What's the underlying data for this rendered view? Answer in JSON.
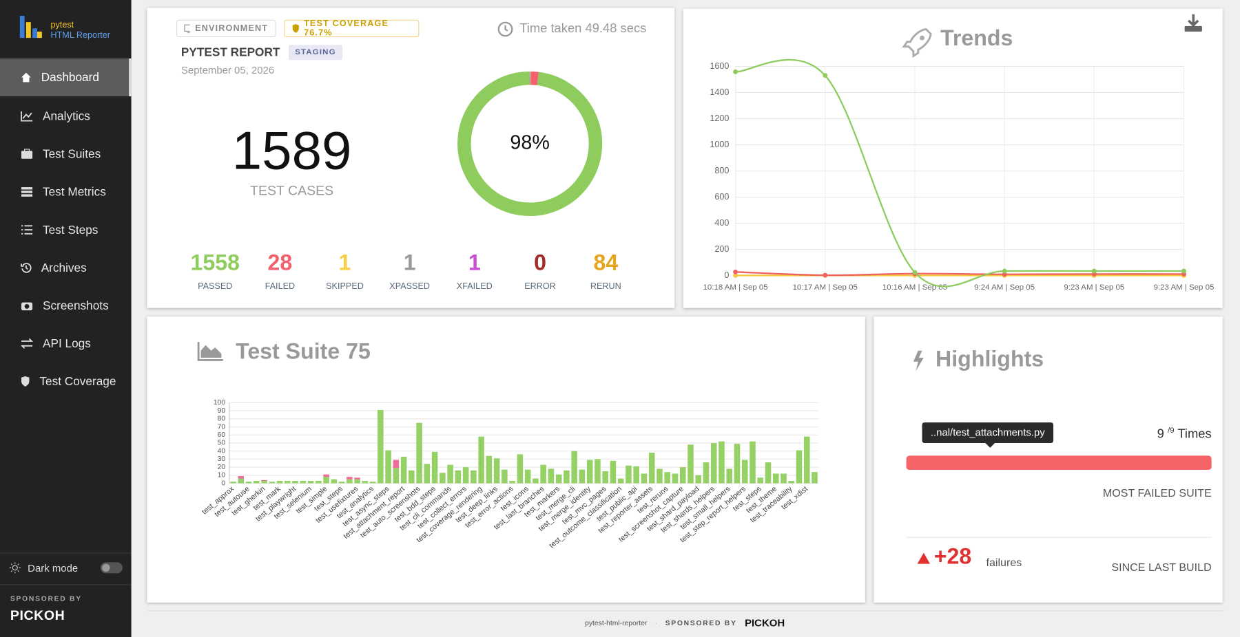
{
  "sidebar": {
    "brand_top": "pytest",
    "brand_bottom": "HTML Reporter",
    "nav": [
      "Dashboard",
      "Analytics",
      "Test Suites",
      "Test Metrics",
      "Test Steps",
      "Archives",
      "Screenshots",
      "API Logs",
      "Test Coverage"
    ],
    "dark_mode": "Dark mode",
    "sponsored": "SPONSORED BY",
    "sponsor": "PICKOH"
  },
  "summary": {
    "environment": "ENVIRONMENT",
    "coverage": "TEST COVERAGE 76.7%",
    "time": "Time taken 49.48 secs",
    "report": "PYTEST REPORT",
    "tag": "STAGING",
    "date": "September 05, 2026",
    "total": 1589,
    "total_label": "TEST CASES",
    "stats": [
      {
        "value": 1558,
        "label": "PASSED",
        "color": "#8fcc5e"
      },
      {
        "value": 28,
        "label": "FAILED",
        "color": "#f3616e"
      },
      {
        "value": 1,
        "label": "SKIPPED",
        "color": "#f5cf46"
      },
      {
        "value": 1,
        "label": "XPASSED",
        "color": "#9a9a9a"
      },
      {
        "value": 1,
        "label": "XFAILED",
        "color": "#c64fd0"
      },
      {
        "value": 0,
        "label": "ERROR",
        "color": "#a52a2a"
      },
      {
        "value": 84,
        "label": "RERUN",
        "color": "#e6a51a"
      }
    ]
  },
  "highlights": {
    "title": "Highlights",
    "suite": "..nal/test_attachments.py",
    "count": "9",
    "of": "/9",
    "times": "Times",
    "most": "MOST FAILED SUITE",
    "delta": "+28",
    "failures": "failures",
    "since": "SINCE LAST BUILD"
  },
  "footer": {
    "name": "pytest-html-reporter",
    "sponsored": "SPONSORED BY",
    "sponsor": "PICKOH"
  },
  "chart_data": [
    {
      "type": "pie",
      "center_label": "98%"
    },
    {
      "type": "line",
      "title": "Trends",
      "x": [
        "10:18 AM | Sep 05",
        "10:17 AM | Sep 05",
        "10:16 AM | Sep 05",
        "9:24 AM | Sep 05",
        "9:23 AM | Sep 05",
        "9:23 AM | Sep 05"
      ],
      "series": [
        {
          "color": "#8fcc5e",
          "values": [
            1558,
            1530,
            25,
            35,
            35,
            35
          ]
        },
        {
          "color": "#f06262",
          "values": [
            28,
            3,
            15,
            10,
            12,
            12
          ]
        },
        {
          "color": "#f5c842",
          "values": [
            1,
            1,
            1,
            1,
            1,
            1
          ]
        }
      ],
      "ylim": [
        0,
        1600
      ],
      "yticks": [
        0,
        200,
        400,
        600,
        800,
        1000,
        1200,
        1400,
        1600
      ],
      "grid": true
    },
    {
      "type": "bar",
      "title": "Test Suite 75",
      "categories": [
        "test_approx",
        null,
        "test_autouse",
        null,
        "test_gherkin",
        null,
        "test_mark",
        null,
        "test_playwright",
        null,
        "test_selenium",
        null,
        "test_simple",
        null,
        "test_steps",
        null,
        "test_usefixtures",
        null,
        "test_analytics",
        null,
        "test_async_steps",
        null,
        "test_attachment_report",
        null,
        "test_auto_screenshots",
        null,
        "test_bdd_steps",
        null,
        "test_cli_commands",
        null,
        "test_collect_errors",
        null,
        "test_coverage_rendering",
        null,
        "test_deep_links",
        null,
        "test_error_actions",
        null,
        "test_icons",
        null,
        "test_last_branches",
        null,
        "test_markers",
        null,
        "test_merge_cli",
        null,
        "test_merge_identity",
        null,
        "test_mvc_pages",
        null,
        "test_outcome_classification",
        null,
        "test_public_api",
        null,
        "test_reporter_assets",
        null,
        "test_reruns",
        null,
        "test_screenshot_capture",
        null,
        "test_shard_payload",
        null,
        "test_shards_helpers",
        null,
        "test_small_helpers",
        null,
        "test_step_report_helpers",
        null,
        "test_steps",
        null,
        "test_theme",
        null,
        "test_traceability",
        null,
        "test_xdist",
        null
      ],
      "series": [
        {
          "color": "#95d165",
          "values": [
            2,
            6,
            2,
            3,
            3,
            2,
            3,
            3,
            3,
            3,
            3,
            3,
            8,
            5,
            2,
            5,
            5,
            3,
            2,
            91,
            41,
            19,
            33,
            16,
            75,
            24,
            39,
            13,
            23,
            16,
            20,
            16,
            58,
            34,
            31,
            17,
            3,
            36,
            17,
            6,
            23,
            18,
            11,
            16,
            40,
            17,
            29,
            30,
            15,
            28,
            6,
            22,
            21,
            12,
            38,
            18,
            14,
            12,
            20,
            48,
            10,
            26,
            50,
            52,
            18,
            49,
            29,
            52,
            7,
            26,
            12,
            12,
            3,
            41,
            58,
            14
          ]
        },
        {
          "color": "#f06c9b",
          "values": [
            0,
            3,
            0,
            0,
            1,
            0,
            0,
            0,
            0,
            0,
            0,
            0,
            3,
            0,
            0,
            3,
            2,
            0,
            0,
            0,
            0,
            10,
            0,
            0,
            0,
            0,
            0,
            0,
            0,
            0,
            0,
            0,
            0,
            0,
            0,
            0,
            0,
            0,
            0,
            0,
            0,
            0,
            0,
            0,
            0,
            0,
            0,
            0,
            0,
            0,
            0,
            0,
            0,
            0,
            0,
            0,
            0,
            0,
            0,
            0,
            0,
            0,
            0,
            0,
            0,
            0,
            0,
            0,
            0,
            0,
            0,
            0,
            0,
            0,
            0,
            0
          ]
        }
      ],
      "ylim": [
        0,
        100
      ],
      "yticks": [
        0,
        10,
        20,
        30,
        40,
        50,
        60,
        70,
        80,
        90,
        100
      ],
      "grid": true
    }
  ]
}
